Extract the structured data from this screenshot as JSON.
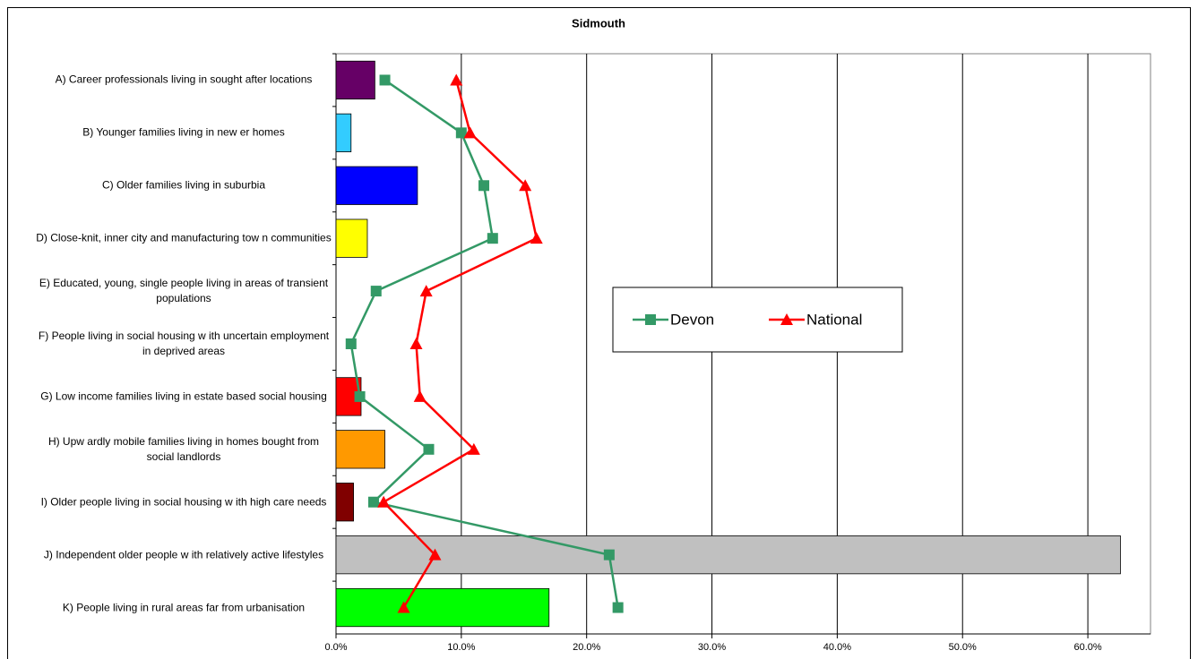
{
  "chart_data": {
    "type": "bar",
    "orientation": "horizontal",
    "title": "Sidmouth",
    "categories": [
      "A) Career professionals living in sought after locations",
      "B) Younger families living in new er homes",
      "C) Older families living in suburbia",
      "D) Close-knit, inner city and manufacturing tow n communities",
      "E) Educated, young, single people living in areas of transient populations",
      "F) People living in social housing w ith uncertain employment in deprived areas",
      "G) Low  income families living in estate based social housing",
      "H) Upw ardly mobile families living in homes bought from social landlords",
      "I) Older people living in social housing w ith high care needs",
      "J) Independent older people w ith relatively active lifestyles",
      "K) People living in rural areas far from urbanisation"
    ],
    "values": [
      3.1,
      1.2,
      6.5,
      2.5,
      0,
      0,
      2.0,
      3.9,
      1.4,
      62.6,
      17.0
    ],
    "colors": [
      "#660066",
      "#33ccff",
      "#0000ff",
      "#ffff00",
      "#cccccc",
      "#cccccc",
      "#ff0000",
      "#ff9900",
      "#800000",
      "#c0c0c0",
      "#00ff00"
    ],
    "series": [
      {
        "name": "Devon",
        "type": "line",
        "marker": "square",
        "color": "#339966",
        "values": [
          3.9,
          10.0,
          11.8,
          12.5,
          3.2,
          1.2,
          1.9,
          7.4,
          3.0,
          21.8,
          22.5
        ]
      },
      {
        "name": "National",
        "type": "line",
        "marker": "triangle",
        "color": "#ff0000",
        "values": [
          9.6,
          10.7,
          15.1,
          16.0,
          7.2,
          6.4,
          6.7,
          11.0,
          3.8,
          7.9,
          5.4
        ]
      }
    ],
    "xlim": [
      0,
      65
    ],
    "xticks": [
      {
        "value": 0,
        "label": "0.0%"
      },
      {
        "value": 10,
        "label": "10.0%"
      },
      {
        "value": 20,
        "label": "20.0%"
      },
      {
        "value": 30,
        "label": "30.0%"
      },
      {
        "value": 40,
        "label": "40.0%"
      },
      {
        "value": 50,
        "label": "50.0%"
      },
      {
        "value": 60,
        "label": "60.0%"
      }
    ],
    "grid": true,
    "legend": "center-right"
  }
}
